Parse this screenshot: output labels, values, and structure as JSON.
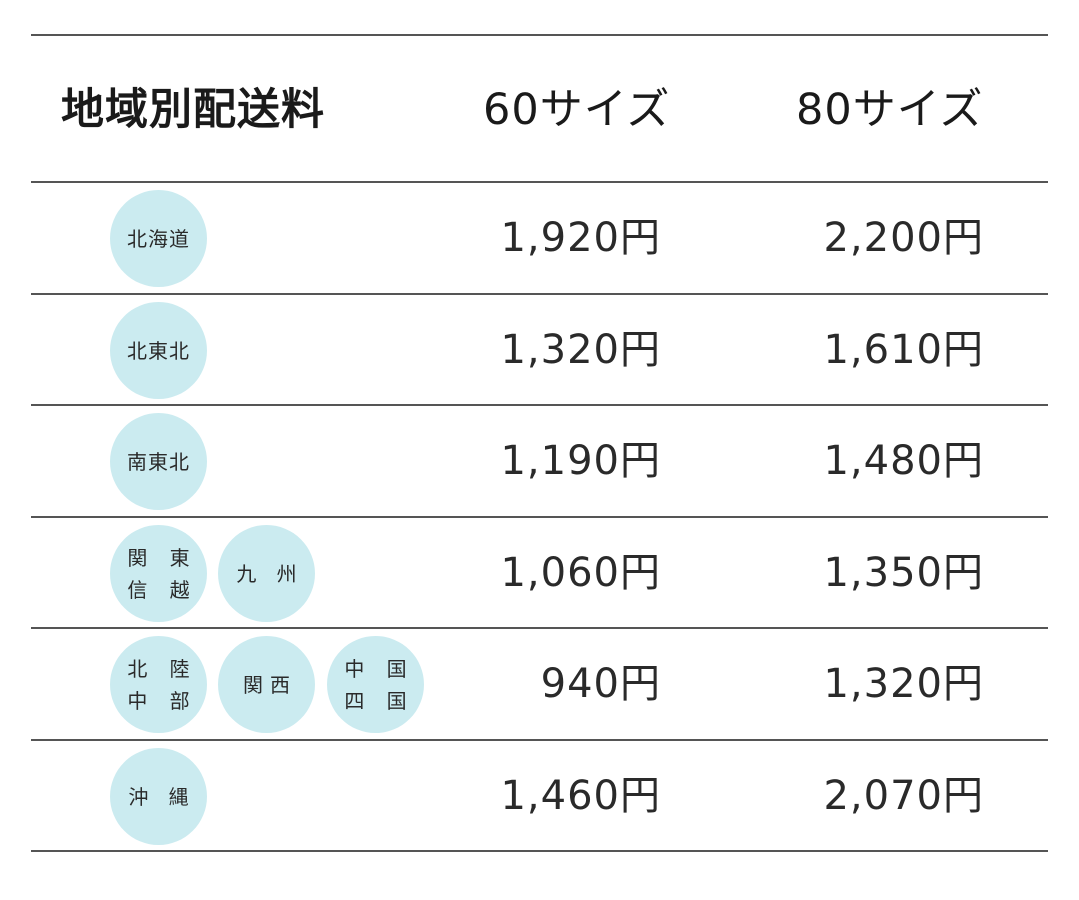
{
  "header": {
    "region": "地域別配送料",
    "size60": "60サイズ",
    "size80": "80サイズ"
  },
  "colors": {
    "bubble": "#cbebf0",
    "rule": "#555555"
  },
  "rows": [
    {
      "regions": [
        "北海道"
      ],
      "price60": "1,920円",
      "price80": "2,200円"
    },
    {
      "regions": [
        "北東北"
      ],
      "price60": "1,320円",
      "price80": "1,610円"
    },
    {
      "regions": [
        "南東北"
      ],
      "price60": "1,190円",
      "price80": "1,480円"
    },
    {
      "regions": [
        "関 東\n信 越",
        "九 州"
      ],
      "price60": "1,060円",
      "price80": "1,350円"
    },
    {
      "regions": [
        "北 陸\n中 部",
        "関西",
        "中 国\n四 国"
      ],
      "price60": "940円",
      "price80": "1,320円"
    },
    {
      "regions": [
        "沖 縄"
      ],
      "price60": "1,460円",
      "price80": "2,070円"
    }
  ]
}
